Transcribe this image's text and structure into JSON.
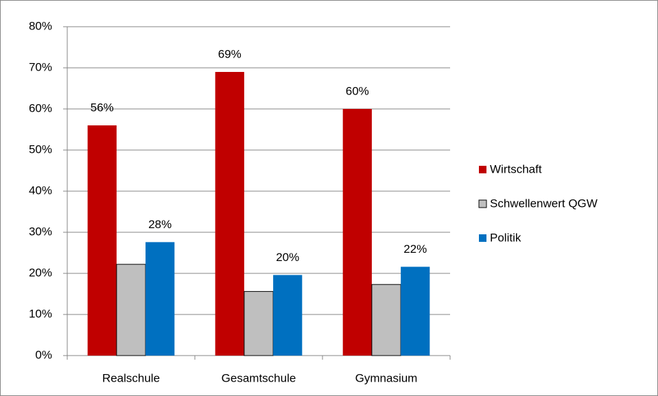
{
  "chart_data": {
    "type": "bar",
    "categories": [
      "Realschule",
      "Gesamtschule",
      "Gymnasium"
    ],
    "series": [
      {
        "name": "Wirtschaft",
        "color": "#c00000",
        "values": [
          56,
          69,
          60
        ],
        "value_labels": [
          "56%",
          "69%",
          "60%"
        ]
      },
      {
        "name": "Schwellenwert QGW",
        "color": "#bfbfbf",
        "values": [
          22.2,
          15.6,
          17.3
        ]
      },
      {
        "name": "Politik",
        "color": "#0070c0",
        "values": [
          27.6,
          19.6,
          21.6
        ],
        "value_labels": [
          "28%",
          "20%",
          "22%"
        ]
      }
    ],
    "ylim": [
      0,
      80
    ],
    "yticks": [
      {
        "value": 0,
        "label": "0%"
      },
      {
        "value": 10,
        "label": "10%"
      },
      {
        "value": 20,
        "label": "20%"
      },
      {
        "value": 30,
        "label": "30%"
      },
      {
        "value": 40,
        "label": "40%"
      },
      {
        "value": 50,
        "label": "50%"
      },
      {
        "value": 60,
        "label": "60%"
      },
      {
        "value": 70,
        "label": "70%"
      },
      {
        "value": 80,
        "label": "80%"
      }
    ],
    "grid": true,
    "legend": "right"
  }
}
